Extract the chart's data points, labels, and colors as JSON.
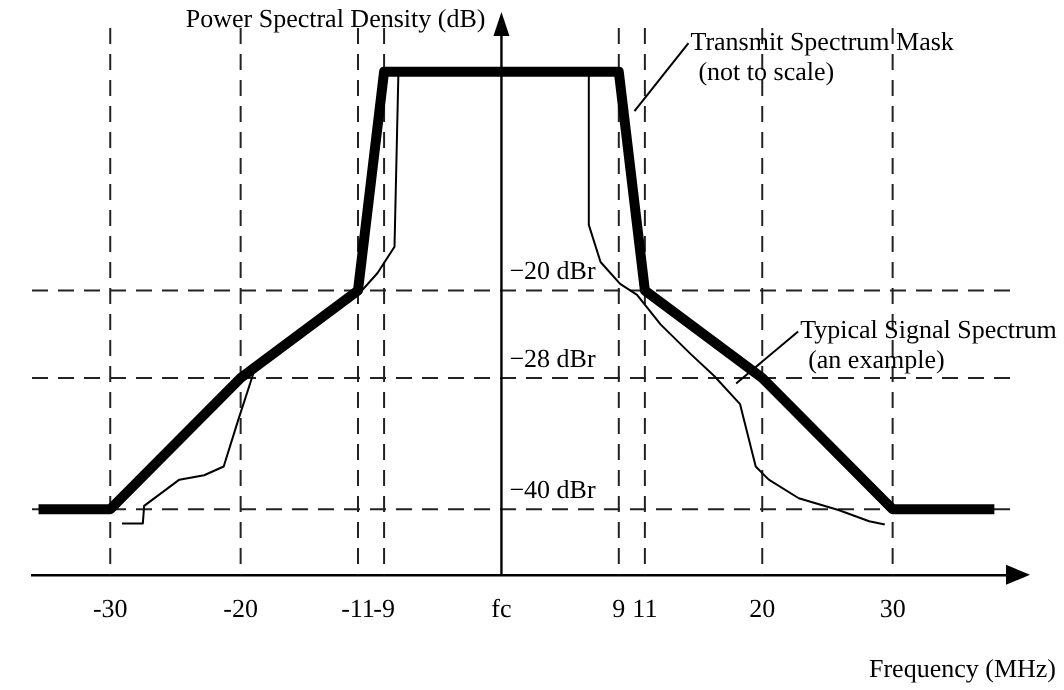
{
  "chart_data": {
    "type": "line",
    "xlabel": "Frequency (MHz)",
    "ylabel": "Power Spectral Density (dB)",
    "series": [
      {
        "color": "#000000",
        "x": [
          -35.5,
          -30,
          -20,
          -11,
          -9,
          9,
          11,
          20,
          30,
          37.8
        ],
        "values": [
          -40,
          -40,
          -28,
          -20,
          0,
          0,
          -20,
          -28,
          -40,
          -40
        ]
      },
      {
        "color": "#000000",
        "x": [
          -29.1,
          -27.5,
          -27.4,
          -24.7,
          -22.8,
          -21.3,
          -20.2,
          -19,
          -16.7,
          -13.7,
          -11,
          -9.5,
          -8.2,
          -7.9,
          6.7,
          6.7,
          7.6,
          9.1,
          10.4,
          12.2,
          14.5,
          16.3,
          18.3,
          19.5,
          20.5,
          22.8,
          25.9,
          28.2,
          29.4
        ],
        "values": [
          -41.3,
          -41.3,
          -39.7,
          -37.3,
          -36.9,
          -36.1,
          -31.9,
          -27.5,
          -24.8,
          -22.1,
          -20.4,
          -18.4,
          -16,
          0,
          0,
          -14,
          -17.4,
          -19.4,
          -20.4,
          -23.1,
          -25.8,
          -27.8,
          -30.4,
          -36.1,
          -37.3,
          -39,
          -40.1,
          -41.1,
          -41.4
        ]
      }
    ],
    "xlim": [
      -36,
      39
    ],
    "ylim": [
      -46,
      4
    ],
    "xticks": [
      -30,
      -20,
      -11,
      -9,
      {
        "value": 0,
        "label": "fc"
      },
      9,
      11,
      20,
      30
    ],
    "yticks": [
      {
        "value": -20,
        "label": "−20 dBr"
      },
      {
        "value": -28,
        "label": "−28 dBr"
      },
      {
        "value": -40,
        "label": "−40 dBr"
      }
    ],
    "ref_lines": [
      {
        "axis": "y",
        "value": -20,
        "line_style": "dashed"
      },
      {
        "axis": "y",
        "value": -28,
        "line_style": "dashed"
      },
      {
        "axis": "y",
        "value": -40,
        "line_style": "dashed"
      },
      {
        "axis": "x",
        "value": -30,
        "line_style": "dashed"
      },
      {
        "axis": "x",
        "value": -20,
        "line_style": "dashed"
      },
      {
        "axis": "x",
        "value": -11,
        "line_style": "dashed"
      },
      {
        "axis": "x",
        "value": -9,
        "line_style": "dashed"
      },
      {
        "axis": "x",
        "value": 9,
        "line_style": "dashed"
      },
      {
        "axis": "x",
        "value": 11,
        "line_style": "dashed"
      },
      {
        "axis": "x",
        "value": 20,
        "line_style": "dashed"
      },
      {
        "axis": "x",
        "value": 30,
        "line_style": "dashed"
      }
    ],
    "annotations": [
      {
        "text": "Transmit Spectrum Mask\n(not to scale)",
        "x": 10.2,
        "y": -3.6
      },
      {
        "text": "Typical Signal Spectrum\n(an example)",
        "x": 18,
        "y": -28.5
      }
    ],
    "grid": false,
    "legend": false,
    "marker": "none",
    "line_style": "solid"
  }
}
